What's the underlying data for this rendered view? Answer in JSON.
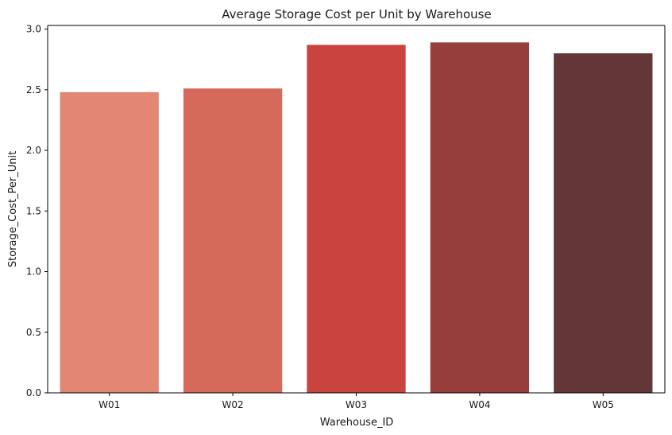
{
  "chart_data": {
    "type": "bar",
    "title": "Average Storage Cost per Unit by Warehouse",
    "xlabel": "Warehouse_ID",
    "ylabel": "Storage_Cost_Per_Unit",
    "categories": [
      "W01",
      "W02",
      "W03",
      "W04",
      "W05"
    ],
    "values": [
      2.48,
      2.51,
      2.87,
      2.89,
      2.8
    ],
    "colors": [
      "#e18774",
      "#d5695a",
      "#c9443e",
      "#963e3c",
      "#633637"
    ],
    "ylim": [
      0,
      3.03
    ],
    "yticks": [
      0.0,
      0.5,
      1.0,
      1.5,
      2.0,
      2.5,
      3.0
    ],
    "ytick_labels": [
      "0.0",
      "0.5",
      "1.0",
      "1.5",
      "2.0",
      "2.5",
      "3.0"
    ],
    "grid": false,
    "legend": "none"
  }
}
